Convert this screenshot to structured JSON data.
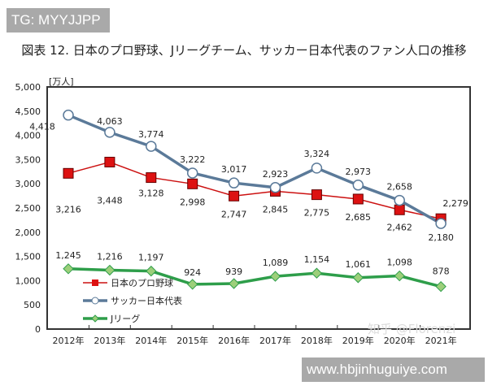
{
  "watermark_top": "TG: MYYJJPP",
  "watermark_bottom": "www.hbjinhuguiye.com",
  "watermark_chart": "知乎 @Florenzi",
  "chart_data": {
    "type": "line",
    "title": "図表 12.  日本のプロ野球、Jリーグチーム、サッカー日本代表のファン人口の推移",
    "ylabel": "[万人]",
    "xlabel": "",
    "ylim": [
      0,
      5000
    ],
    "yticks": [
      0,
      500,
      1000,
      1500,
      2000,
      2500,
      3000,
      3500,
      4000,
      4500,
      5000
    ],
    "ytick_labels": [
      "0",
      "500",
      "1,000",
      "1,500",
      "2,000",
      "2,500",
      "3,000",
      "3,500",
      "4,000",
      "4,500",
      "5,000"
    ],
    "categories": [
      "2012年",
      "2013年",
      "2014年",
      "2015年",
      "2016年",
      "2017年",
      "2018年",
      "2019年",
      "2020年",
      "2021年"
    ],
    "grid": false,
    "legend": "left",
    "series": [
      {
        "name": "日本のプロ野球",
        "color": "#cc1010",
        "marker": "square",
        "values": [
          3216,
          3448,
          3128,
          2998,
          2747,
          2845,
          2775,
          2685,
          2462,
          2279
        ],
        "labels": [
          "3,216",
          "3,448",
          "3,128",
          "2,998",
          "2,747",
          "2,845",
          "2,775",
          "2,685",
          "2,462",
          "2,279"
        ]
      },
      {
        "name": "サッカー日本代表",
        "color": "#5b7a99",
        "marker": "circle",
        "values": [
          4418,
          4063,
          3774,
          3222,
          3017,
          2923,
          3324,
          2973,
          2658,
          2180
        ],
        "labels": [
          "4,418",
          "4,063",
          "3,774",
          "3,222",
          "3,017",
          "2,923",
          "3,324",
          "2,973",
          "2,658",
          "2,180"
        ]
      },
      {
        "name": "Jリーグ",
        "color": "#2e9e4a",
        "marker": "diamond",
        "values": [
          1245,
          1216,
          1197,
          924,
          939,
          1089,
          1154,
          1061,
          1098,
          878
        ],
        "labels": [
          "1,245",
          "1,216",
          "1,197",
          "924",
          "939",
          "1,089",
          "1,154",
          "1,061",
          "1,098",
          "878"
        ]
      }
    ]
  }
}
